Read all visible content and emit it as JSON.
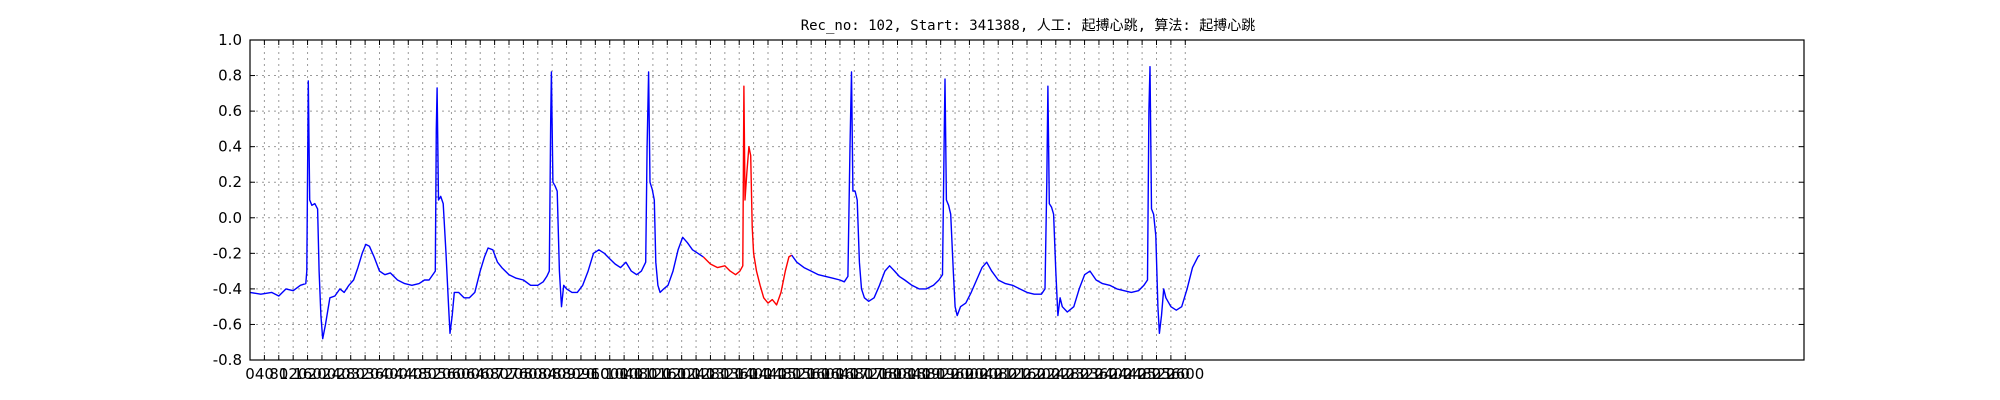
{
  "chart_data": {
    "type": "line",
    "title": "Rec_no: 102, Start: 341388, 人工: 起搏心跳, 算法: 起搏心跳",
    "xlabel": "",
    "ylabel": "",
    "xlim": [
      0,
      4320
    ],
    "ylim": [
      -0.8,
      1.0
    ],
    "grid": true,
    "colors": {
      "normal": "#0000ff",
      "highlight": "#ff0000"
    },
    "y_ticks": [
      "-0.8",
      "-0.6",
      "-0.4",
      "-0.2",
      "0.0",
      "0.2",
      "0.4",
      "0.6",
      "0.8",
      "1.0"
    ],
    "x_ticks": [
      0,
      40,
      80,
      120,
      160,
      200,
      240,
      280,
      320,
      360,
      400,
      440,
      480,
      520,
      560,
      600,
      640,
      680,
      720,
      760,
      800,
      840,
      880,
      920,
      960,
      1000,
      1040,
      1080,
      1120,
      1160,
      1200,
      1240,
      1280,
      1320,
      1360,
      1400,
      1440,
      1480,
      1520,
      1560,
      1600,
      1640,
      1680,
      1720,
      1760,
      1800,
      1840,
      1880,
      1920,
      1960,
      2000,
      2040,
      2080,
      2120,
      2160,
      2200,
      2240,
      2280,
      2320,
      2360,
      2400,
      2440,
      2480,
      2520,
      2560,
      2600
    ],
    "x_tick_labels": [
      "0",
      "40",
      "80",
      "120",
      "160",
      "200",
      "240",
      "280",
      "320",
      "360",
      "400",
      "440",
      "480",
      "520",
      "560",
      "600",
      "640",
      "680",
      "720",
      "760",
      "800",
      "840",
      "880",
      "920",
      "960",
      "1000",
      "1040",
      "1080",
      "1120",
      "1160",
      "1200",
      "1240",
      "1280",
      "1320",
      "1360",
      "1400",
      "1440",
      "1480",
      "1520",
      "1560",
      "1600",
      "1640",
      "1680",
      "1720",
      "1760",
      "1800",
      "1840",
      "1880",
      "1920",
      "1960",
      "2000",
      "2040",
      "2080",
      "2120",
      "2160",
      "2200",
      "2240",
      "2280",
      "2320",
      "2360",
      "2400",
      "2440",
      "2480",
      "2520",
      "2560",
      "2600"
    ],
    "series": [
      {
        "color": "#0000ff",
        "points": [
          [
            0,
            -0.42
          ],
          [
            30,
            -0.43
          ],
          [
            60,
            -0.42
          ],
          [
            80,
            -0.44
          ],
          [
            100,
            -0.4
          ],
          [
            120,
            -0.41
          ],
          [
            140,
            -0.38
          ],
          [
            155,
            -0.37
          ],
          [
            158,
            -0.3
          ],
          [
            162,
            0.77
          ],
          [
            166,
            0.1
          ],
          [
            172,
            0.07
          ],
          [
            180,
            0.08
          ],
          [
            188,
            0.05
          ],
          [
            192,
            -0.3
          ],
          [
            197,
            -0.55
          ],
          [
            202,
            -0.68
          ],
          [
            210,
            -0.6
          ],
          [
            222,
            -0.45
          ],
          [
            236,
            -0.44
          ],
          [
            250,
            -0.4
          ],
          [
            262,
            -0.42
          ],
          [
            275,
            -0.38
          ],
          [
            288,
            -0.35
          ],
          [
            300,
            -0.28
          ],
          [
            312,
            -0.2
          ],
          [
            322,
            -0.15
          ],
          [
            332,
            -0.16
          ],
          [
            345,
            -0.22
          ],
          [
            360,
            -0.3
          ],
          [
            375,
            -0.32
          ],
          [
            390,
            -0.31
          ],
          [
            410,
            -0.35
          ],
          [
            430,
            -0.37
          ],
          [
            450,
            -0.38
          ],
          [
            470,
            -0.37
          ],
          [
            485,
            -0.35
          ],
          [
            498,
            -0.35
          ],
          [
            515,
            -0.3
          ],
          [
            518,
            0.5
          ],
          [
            520,
            0.73
          ],
          [
            524,
            0.1
          ],
          [
            530,
            0.12
          ],
          [
            537,
            0.08
          ],
          [
            545,
            -0.2
          ],
          [
            552,
            -0.5
          ],
          [
            556,
            -0.65
          ],
          [
            562,
            -0.55
          ],
          [
            568,
            -0.42
          ],
          [
            580,
            -0.42
          ],
          [
            595,
            -0.45
          ],
          [
            610,
            -0.45
          ],
          [
            625,
            -0.42
          ],
          [
            640,
            -0.3
          ],
          [
            652,
            -0.22
          ],
          [
            662,
            -0.17
          ],
          [
            675,
            -0.18
          ],
          [
            688,
            -0.25
          ],
          [
            700,
            -0.28
          ],
          [
            720,
            -0.32
          ],
          [
            740,
            -0.34
          ],
          [
            760,
            -0.35
          ],
          [
            780,
            -0.38
          ],
          [
            800,
            -0.38
          ],
          [
            815,
            -0.36
          ],
          [
            825,
            -0.33
          ],
          [
            832,
            -0.3
          ],
          [
            836,
            0.55
          ],
          [
            838,
            0.82
          ],
          [
            842,
            0.2
          ],
          [
            848,
            0.18
          ],
          [
            854,
            0.15
          ],
          [
            860,
            -0.3
          ],
          [
            866,
            -0.5
          ],
          [
            872,
            -0.38
          ],
          [
            880,
            -0.4
          ],
          [
            895,
            -0.42
          ],
          [
            910,
            -0.42
          ],
          [
            925,
            -0.38
          ],
          [
            940,
            -0.3
          ],
          [
            955,
            -0.2
          ],
          [
            970,
            -0.18
          ],
          [
            985,
            -0.2
          ],
          [
            1000,
            -0.23
          ],
          [
            1015,
            -0.26
          ],
          [
            1030,
            -0.28
          ],
          [
            1045,
            -0.25
          ],
          [
            1060,
            -0.3
          ],
          [
            1075,
            -0.32
          ],
          [
            1088,
            -0.3
          ],
          [
            1100,
            -0.25
          ],
          [
            1104,
            0.4
          ],
          [
            1108,
            0.82
          ],
          [
            1112,
            0.2
          ],
          [
            1118,
            0.16
          ],
          [
            1124,
            0.1
          ],
          [
            1128,
            -0.25
          ],
          [
            1134,
            -0.38
          ],
          [
            1140,
            -0.42
          ],
          [
            1150,
            -0.4
          ],
          [
            1162,
            -0.38
          ],
          [
            1176,
            -0.3
          ],
          [
            1190,
            -0.18
          ],
          [
            1203,
            -0.11
          ],
          [
            1216,
            -0.14
          ],
          [
            1230,
            -0.18
          ],
          [
            1245,
            -0.2
          ],
          [
            1260,
            -0.22
          ]
        ]
      },
      {
        "color": "#ff0000",
        "points": [
          [
            1260,
            -0.22
          ],
          [
            1280,
            -0.26
          ],
          [
            1300,
            -0.28
          ],
          [
            1320,
            -0.27
          ],
          [
            1335,
            -0.3
          ],
          [
            1350,
            -0.32
          ],
          [
            1362,
            -0.3
          ],
          [
            1370,
            -0.27
          ],
          [
            1373,
            0.74
          ],
          [
            1376,
            0.1
          ],
          [
            1381,
            0.25
          ],
          [
            1387,
            0.4
          ],
          [
            1392,
            0.35
          ],
          [
            1396,
            -0.05
          ],
          [
            1400,
            -0.2
          ],
          [
            1408,
            -0.3
          ],
          [
            1418,
            -0.38
          ],
          [
            1428,
            -0.45
          ],
          [
            1440,
            -0.48
          ],
          [
            1452,
            -0.46
          ],
          [
            1464,
            -0.49
          ],
          [
            1476,
            -0.42
          ],
          [
            1488,
            -0.3
          ],
          [
            1498,
            -0.22
          ],
          [
            1506,
            -0.21
          ]
        ]
      },
      {
        "color": "#0000ff",
        "points": [
          [
            1506,
            -0.21
          ],
          [
            1520,
            -0.25
          ],
          [
            1540,
            -0.28
          ],
          [
            1560,
            -0.3
          ],
          [
            1580,
            -0.32
          ],
          [
            1600,
            -0.33
          ],
          [
            1620,
            -0.34
          ],
          [
            1640,
            -0.35
          ],
          [
            1652,
            -0.36
          ],
          [
            1662,
            -0.33
          ],
          [
            1668,
            0.4
          ],
          [
            1672,
            0.82
          ],
          [
            1676,
            0.15
          ],
          [
            1682,
            0.15
          ],
          [
            1688,
            0.1
          ],
          [
            1694,
            -0.25
          ],
          [
            1700,
            -0.4
          ],
          [
            1708,
            -0.45
          ],
          [
            1720,
            -0.47
          ],
          [
            1735,
            -0.45
          ],
          [
            1750,
            -0.38
          ],
          [
            1765,
            -0.3
          ],
          [
            1778,
            -0.27
          ],
          [
            1792,
            -0.3
          ],
          [
            1805,
            -0.33
          ],
          [
            1820,
            -0.35
          ],
          [
            1840,
            -0.38
          ],
          [
            1860,
            -0.4
          ],
          [
            1880,
            -0.4
          ],
          [
            1900,
            -0.38
          ],
          [
            1915,
            -0.35
          ],
          [
            1925,
            -0.32
          ],
          [
            1930,
            0.5
          ],
          [
            1932,
            0.78
          ],
          [
            1936,
            0.1
          ],
          [
            1942,
            0.07
          ],
          [
            1948,
            0.02
          ],
          [
            1955,
            -0.3
          ],
          [
            1960,
            -0.5
          ],
          [
            1966,
            -0.55
          ],
          [
            1975,
            -0.5
          ],
          [
            1990,
            -0.48
          ],
          [
            2005,
            -0.42
          ],
          [
            2020,
            -0.35
          ],
          [
            2035,
            -0.28
          ],
          [
            2048,
            -0.25
          ],
          [
            2062,
            -0.3
          ],
          [
            2080,
            -0.35
          ],
          [
            2100,
            -0.37
          ],
          [
            2120,
            -0.38
          ],
          [
            2140,
            -0.4
          ],
          [
            2160,
            -0.42
          ],
          [
            2180,
            -0.43
          ],
          [
            2200,
            -0.43
          ],
          [
            2210,
            -0.4
          ],
          [
            2215,
            0.2
          ],
          [
            2218,
            0.74
          ],
          [
            2222,
            0.08
          ],
          [
            2228,
            0.06
          ],
          [
            2234,
            0.02
          ],
          [
            2240,
            -0.3
          ],
          [
            2246,
            -0.55
          ],
          [
            2252,
            -0.45
          ],
          [
            2258,
            -0.5
          ],
          [
            2272,
            -0.53
          ],
          [
            2290,
            -0.5
          ],
          [
            2305,
            -0.4
          ],
          [
            2320,
            -0.32
          ],
          [
            2335,
            -0.3
          ],
          [
            2352,
            -0.35
          ],
          [
            2370,
            -0.37
          ],
          [
            2390,
            -0.38
          ],
          [
            2410,
            -0.4
          ],
          [
            2430,
            -0.41
          ],
          [
            2450,
            -0.42
          ],
          [
            2470,
            -0.41
          ],
          [
            2485,
            -0.38
          ],
          [
            2495,
            -0.35
          ],
          [
            2499,
            0.6
          ],
          [
            2502,
            0.85
          ],
          [
            2506,
            0.05
          ],
          [
            2512,
            0.02
          ],
          [
            2518,
            -0.1
          ],
          [
            2524,
            -0.5
          ],
          [
            2528,
            -0.65
          ],
          [
            2534,
            -0.55
          ],
          [
            2540,
            -0.4
          ],
          [
            2546,
            -0.45
          ],
          [
            2560,
            -0.5
          ],
          [
            2575,
            -0.52
          ],
          [
            2590,
            -0.5
          ],
          [
            2605,
            -0.4
          ],
          [
            2620,
            -0.28
          ],
          [
            2635,
            -0.22
          ],
          [
            2640,
            -0.21
          ]
        ]
      }
    ]
  }
}
